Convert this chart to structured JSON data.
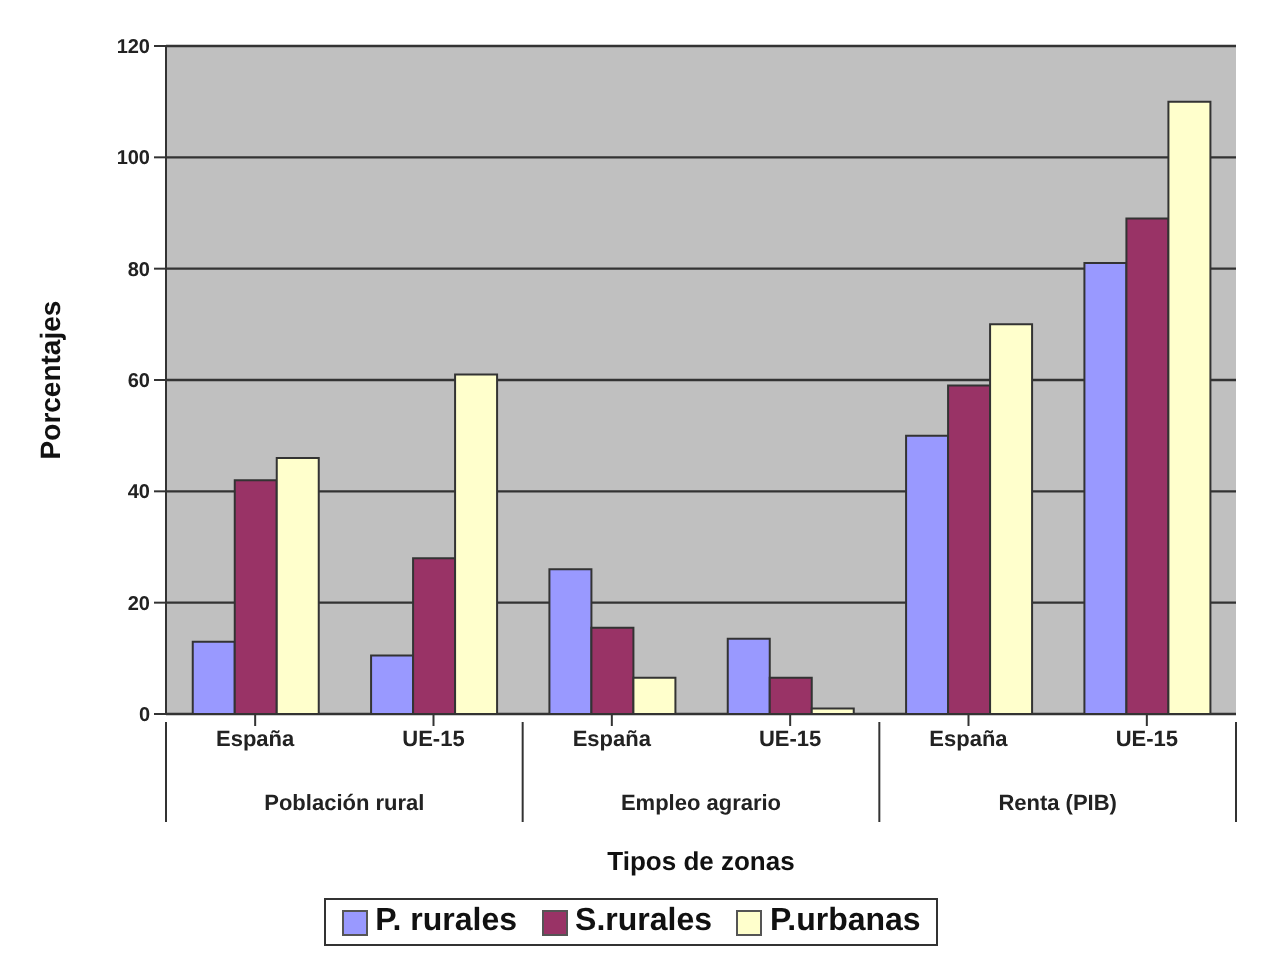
{
  "chart_data": {
    "type": "bar",
    "xlabel": "Tipos de zonas",
    "ylabel": "Porcentajes",
    "categories": [
      "España",
      "UE-15",
      "España",
      "UE-15",
      "España",
      "UE-15"
    ],
    "annotations": [
      "Población rural",
      "Empleo agrario",
      "Renta (PIB)"
    ],
    "series": [
      {
        "name": "P. rurales",
        "color": "#9999ff",
        "values": [
          13,
          10.5,
          26,
          13.5,
          50,
          81
        ]
      },
      {
        "name": "S.rurales",
        "color": "#993366",
        "values": [
          42,
          28,
          15.5,
          6.5,
          59,
          89
        ]
      },
      {
        "name": "P.urbanas",
        "color": "#ffffcc",
        "values": [
          46,
          61,
          6.5,
          1,
          70,
          110
        ]
      }
    ],
    "ylim": [
      0,
      120
    ],
    "yticks": [
      0,
      20,
      40,
      60,
      80,
      100,
      120
    ],
    "grid": "y",
    "legend": "bottom"
  }
}
